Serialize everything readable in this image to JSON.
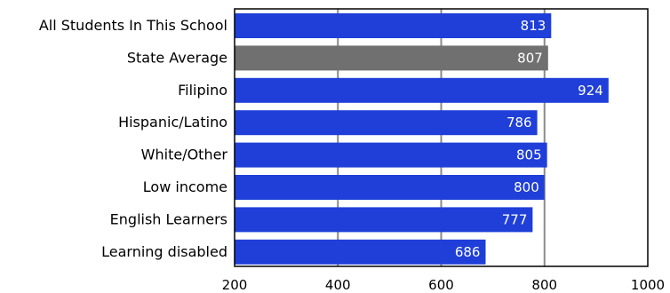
{
  "chart_data": {
    "type": "bar",
    "orientation": "horizontal",
    "title": "",
    "xlabel": "",
    "ylabel": "",
    "categories": [
      "All Students In This School",
      "State Average",
      "Filipino",
      "Hispanic/Latino",
      "White/Other",
      "Low income",
      "English Learners",
      "Learning disabled"
    ],
    "values": [
      813,
      807,
      924,
      786,
      805,
      800,
      777,
      686
    ],
    "value_labels": [
      "813",
      "807",
      "924",
      "786",
      "805",
      "800",
      "777",
      "686"
    ],
    "xlim": [
      200,
      1000
    ],
    "xticks": [
      200,
      400,
      600,
      800,
      1000
    ],
    "xtick_labels": [
      "200",
      "400",
      "600",
      "800",
      "1000"
    ],
    "grid": "vertical",
    "legend": "none",
    "colors": {
      "bar": "#1F3FD8",
      "state_average_bar": "#707070",
      "grid": "#8a8a8a",
      "axis": "#000000"
    },
    "highlight_category": "State Average"
  }
}
